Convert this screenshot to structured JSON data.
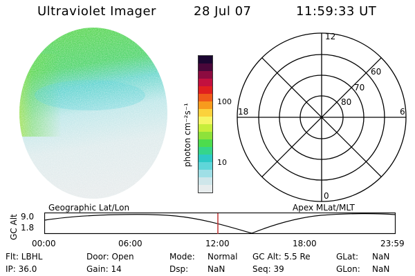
{
  "header": {
    "title": "Ultraviolet Imager",
    "date": "28 Jul 07",
    "time": "11:59:33 UT"
  },
  "colorbar": {
    "label": "photon cm⁻²s⁻¹",
    "ticks": [
      "100",
      "10"
    ],
    "colors": [
      "#e7eced",
      "#cfe6ea",
      "#9fdfe6",
      "#5fd6d9",
      "#2ec9c6",
      "#35d58b",
      "#4ddc4d",
      "#8ee23a",
      "#c7ee3b",
      "#f5f564",
      "#fbd23c",
      "#f79b1d",
      "#ef5a1a",
      "#e01f1f",
      "#c2103f",
      "#8c0b40",
      "#4a073a",
      "#1b0631"
    ]
  },
  "polar_plot": {
    "mlt_labels": [
      "12",
      "18",
      "6",
      "0"
    ],
    "lat_labels": [
      "60",
      "70",
      "80"
    ]
  },
  "orbit_plot": {
    "left_title": "Geographic Lat/Lon",
    "right_title": "Apex  MLat/MLT",
    "axis_label": "GC Alt",
    "y_ticks": [
      "9.0",
      "1.8"
    ],
    "x_ticks": [
      "00:00",
      "06:00",
      "12:00",
      "18:00",
      "23:59"
    ],
    "current_time_color": "#c03030"
  },
  "info": {
    "row1": {
      "flt": "Flt: LBHL",
      "door": "Door: Open",
      "mode_label": "Mode:",
      "mode_value": "Normal",
      "gcalt": "GC Alt: 5.5 Re",
      "glat_label": "GLat:",
      "glat_value": "NaN"
    },
    "row2": {
      "ip": "IP: 36.0",
      "gain": "Gain: 14",
      "dsp_label": "Dsp:",
      "dsp_value": "NaN",
      "seq": "Seq: 39",
      "glon_label": "GLon:",
      "glon_value": "NaN"
    }
  }
}
